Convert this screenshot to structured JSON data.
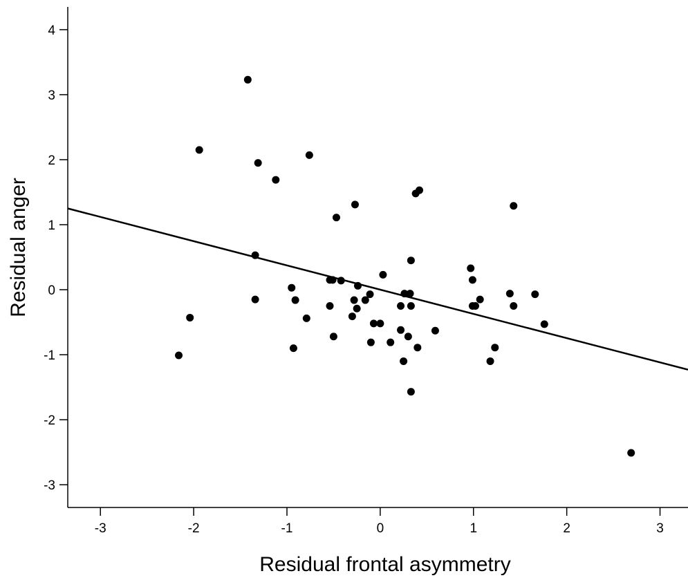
{
  "chart_data": {
    "type": "scatter",
    "title": "",
    "xlabel": "Residual frontal asymmetry",
    "ylabel": "Residual anger",
    "xlim": [
      -3.35,
      3.3
    ],
    "ylim": [
      -3.35,
      4.35
    ],
    "xticks": [
      "-3",
      "-2",
      "-1",
      "0",
      "1",
      "2",
      "3"
    ],
    "yticks": [
      "-3",
      "-2",
      "-1",
      "0",
      "1",
      "2",
      "3",
      "4"
    ],
    "grid": false,
    "legend": "none",
    "marker_color": "#000000",
    "points": [
      {
        "x": -1.42,
        "y": 3.23
      },
      {
        "x": -1.94,
        "y": 2.15
      },
      {
        "x": -1.31,
        "y": 1.95
      },
      {
        "x": -0.76,
        "y": 2.07
      },
      {
        "x": -1.12,
        "y": 1.69
      },
      {
        "x": -0.27,
        "y": 1.31
      },
      {
        "x": 0.38,
        "y": 1.48
      },
      {
        "x": 0.42,
        "y": 1.53
      },
      {
        "x": 1.43,
        "y": 1.29
      },
      {
        "x": -0.47,
        "y": 1.11
      },
      {
        "x": -1.34,
        "y": 0.53
      },
      {
        "x": 0.33,
        "y": 0.45
      },
      {
        "x": 0.97,
        "y": 0.33
      },
      {
        "x": 0.03,
        "y": 0.23
      },
      {
        "x": 0.99,
        "y": 0.15
      },
      {
        "x": -0.54,
        "y": 0.15
      },
      {
        "x": -0.51,
        "y": 0.15
      },
      {
        "x": -0.42,
        "y": 0.14
      },
      {
        "x": -0.95,
        "y": 0.03
      },
      {
        "x": -0.24,
        "y": 0.06
      },
      {
        "x": -0.11,
        "y": -0.07
      },
      {
        "x": 0.26,
        "y": -0.06
      },
      {
        "x": 0.32,
        "y": -0.06
      },
      {
        "x": 1.39,
        "y": -0.06
      },
      {
        "x": 1.66,
        "y": -0.07
      },
      {
        "x": -1.34,
        "y": -0.15
      },
      {
        "x": -0.91,
        "y": -0.16
      },
      {
        "x": -0.28,
        "y": -0.16
      },
      {
        "x": -0.16,
        "y": -0.16
      },
      {
        "x": 1.07,
        "y": -0.15
      },
      {
        "x": -0.54,
        "y": -0.25
      },
      {
        "x": 0.22,
        "y": -0.25
      },
      {
        "x": 0.33,
        "y": -0.25
      },
      {
        "x": 0.99,
        "y": -0.25
      },
      {
        "x": 1.02,
        "y": -0.25
      },
      {
        "x": 1.43,
        "y": -0.25
      },
      {
        "x": -0.25,
        "y": -0.29
      },
      {
        "x": -2.04,
        "y": -0.43
      },
      {
        "x": -0.79,
        "y": -0.44
      },
      {
        "x": -0.3,
        "y": -0.41
      },
      {
        "x": -0.07,
        "y": -0.52
      },
      {
        "x": 0.0,
        "y": -0.52
      },
      {
        "x": 1.76,
        "y": -0.53
      },
      {
        "x": 0.22,
        "y": -0.62
      },
      {
        "x": 0.59,
        "y": -0.63
      },
      {
        "x": -0.5,
        "y": -0.72
      },
      {
        "x": 0.3,
        "y": -0.72
      },
      {
        "x": -0.1,
        "y": -0.81
      },
      {
        "x": 0.11,
        "y": -0.81
      },
      {
        "x": 0.4,
        "y": -0.89
      },
      {
        "x": 1.23,
        "y": -0.89
      },
      {
        "x": -0.93,
        "y": -0.9
      },
      {
        "x": -2.16,
        "y": -1.01
      },
      {
        "x": 0.25,
        "y": -1.1
      },
      {
        "x": 1.18,
        "y": -1.1
      },
      {
        "x": 0.33,
        "y": -1.57
      },
      {
        "x": 2.69,
        "y": -2.51
      }
    ],
    "fit_line": {
      "x": [
        -3.35,
        3.3
      ],
      "y": [
        1.25,
        -1.23
      ],
      "color": "#000000"
    }
  }
}
